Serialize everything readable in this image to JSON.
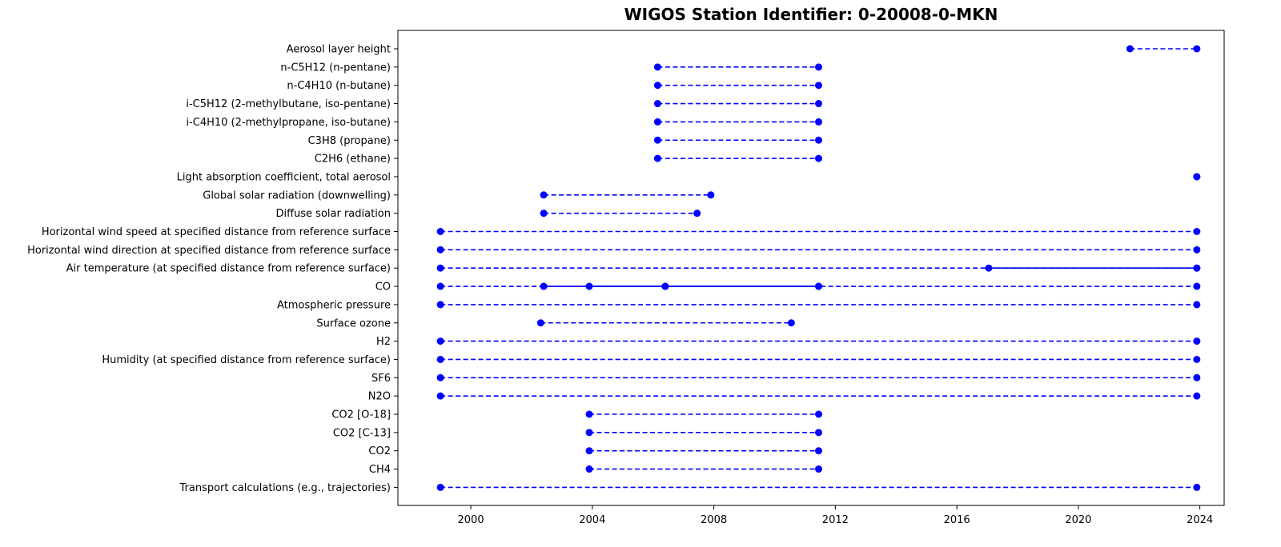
{
  "chart_data": {
    "type": "timeline",
    "title": "WIGOS Station Identifier: 0-20008-0-MKN",
    "xlabel": "",
    "ylabel": "",
    "xlim": [
      1997.6,
      2024.8
    ],
    "xticks": [
      2000,
      2004,
      2008,
      2012,
      2016,
      2020,
      2024
    ],
    "grid": false,
    "marker_color": "#0000ff",
    "line_color": "#0000ff",
    "series": [
      {
        "label": "Aerosol layer height",
        "segments": [
          {
            "start": 2021.7,
            "end": 2023.9,
            "style": "dashed"
          }
        ]
      },
      {
        "label": "n-C5H12 (n-pentane)",
        "segments": [
          {
            "start": 2006.15,
            "end": 2011.45,
            "style": "dashed"
          }
        ]
      },
      {
        "label": "n-C4H10 (n-butane)",
        "segments": [
          {
            "start": 2006.15,
            "end": 2011.45,
            "style": "dashed"
          }
        ]
      },
      {
        "label": "i-C5H12 (2-methylbutane, iso-pentane)",
        "segments": [
          {
            "start": 2006.15,
            "end": 2011.45,
            "style": "dashed"
          }
        ]
      },
      {
        "label": "i-C4H10 (2-methylpropane, iso-butane)",
        "segments": [
          {
            "start": 2006.15,
            "end": 2011.45,
            "style": "dashed"
          }
        ]
      },
      {
        "label": "C3H8 (propane)",
        "segments": [
          {
            "start": 2006.15,
            "end": 2011.45,
            "style": "dashed"
          }
        ]
      },
      {
        "label": "C2H6 (ethane)",
        "segments": [
          {
            "start": 2006.15,
            "end": 2011.45,
            "style": "dashed"
          }
        ]
      },
      {
        "label": "Light absorption coefficient, total aerosol",
        "segments": [
          {
            "start": 2023.9,
            "end": 2023.9,
            "style": "dashed"
          }
        ]
      },
      {
        "label": "Global solar radiation (downwelling)",
        "segments": [
          {
            "start": 2002.4,
            "end": 2007.9,
            "style": "dashed"
          }
        ]
      },
      {
        "label": "Diffuse solar radiation",
        "segments": [
          {
            "start": 2002.4,
            "end": 2007.45,
            "style": "dashed"
          }
        ]
      },
      {
        "label": "Horizontal wind speed at specified distance from reference surface",
        "segments": [
          {
            "start": 1999.0,
            "end": 2023.9,
            "style": "dashed"
          }
        ]
      },
      {
        "label": "Horizontal wind direction at specified distance from reference surface",
        "segments": [
          {
            "start": 1999.0,
            "end": 2023.9,
            "style": "dashed"
          }
        ]
      },
      {
        "label": "Air temperature (at specified distance from reference surface)",
        "segments": [
          {
            "start": 1999.0,
            "end": 2023.9,
            "style": "dashed"
          },
          {
            "start": 2017.05,
            "end": 2023.9,
            "style": "solid"
          }
        ]
      },
      {
        "label": "CO",
        "segments": [
          {
            "start": 1999.0,
            "end": 2023.9,
            "style": "dashed"
          },
          {
            "start": 2002.4,
            "end": 2011.45,
            "style": "dashed"
          },
          {
            "start": 2003.9,
            "end": 2011.45,
            "style": "solid"
          },
          {
            "start": 2006.4,
            "end": 2006.4,
            "style": "solid"
          }
        ]
      },
      {
        "label": "Atmospheric pressure",
        "segments": [
          {
            "start": 1999.0,
            "end": 2023.9,
            "style": "dashed"
          }
        ]
      },
      {
        "label": "Surface ozone",
        "segments": [
          {
            "start": 2002.3,
            "end": 2010.55,
            "style": "dashed"
          }
        ]
      },
      {
        "label": "H2",
        "segments": [
          {
            "start": 1999.0,
            "end": 2023.9,
            "style": "dashed"
          }
        ]
      },
      {
        "label": "Humidity  (at specified distance from reference surface)",
        "segments": [
          {
            "start": 1999.0,
            "end": 2023.9,
            "style": "dashed"
          }
        ]
      },
      {
        "label": "SF6",
        "segments": [
          {
            "start": 1999.0,
            "end": 2023.9,
            "style": "dashed"
          }
        ]
      },
      {
        "label": "N2O",
        "segments": [
          {
            "start": 1999.0,
            "end": 2023.9,
            "style": "dashed"
          }
        ]
      },
      {
        "label": "CO2 [O-18]",
        "segments": [
          {
            "start": 2003.9,
            "end": 2011.45,
            "style": "dashed"
          }
        ]
      },
      {
        "label": "CO2 [C-13]",
        "segments": [
          {
            "start": 2003.9,
            "end": 2011.45,
            "style": "dashed"
          }
        ]
      },
      {
        "label": "CO2",
        "segments": [
          {
            "start": 2003.9,
            "end": 2011.45,
            "style": "dashed"
          }
        ]
      },
      {
        "label": "CH4",
        "segments": [
          {
            "start": 2003.9,
            "end": 2011.45,
            "style": "dashed"
          }
        ]
      },
      {
        "label": "Transport calculations (e.g., trajectories)",
        "segments": [
          {
            "start": 1999.0,
            "end": 2023.9,
            "style": "dashed"
          }
        ]
      }
    ]
  }
}
